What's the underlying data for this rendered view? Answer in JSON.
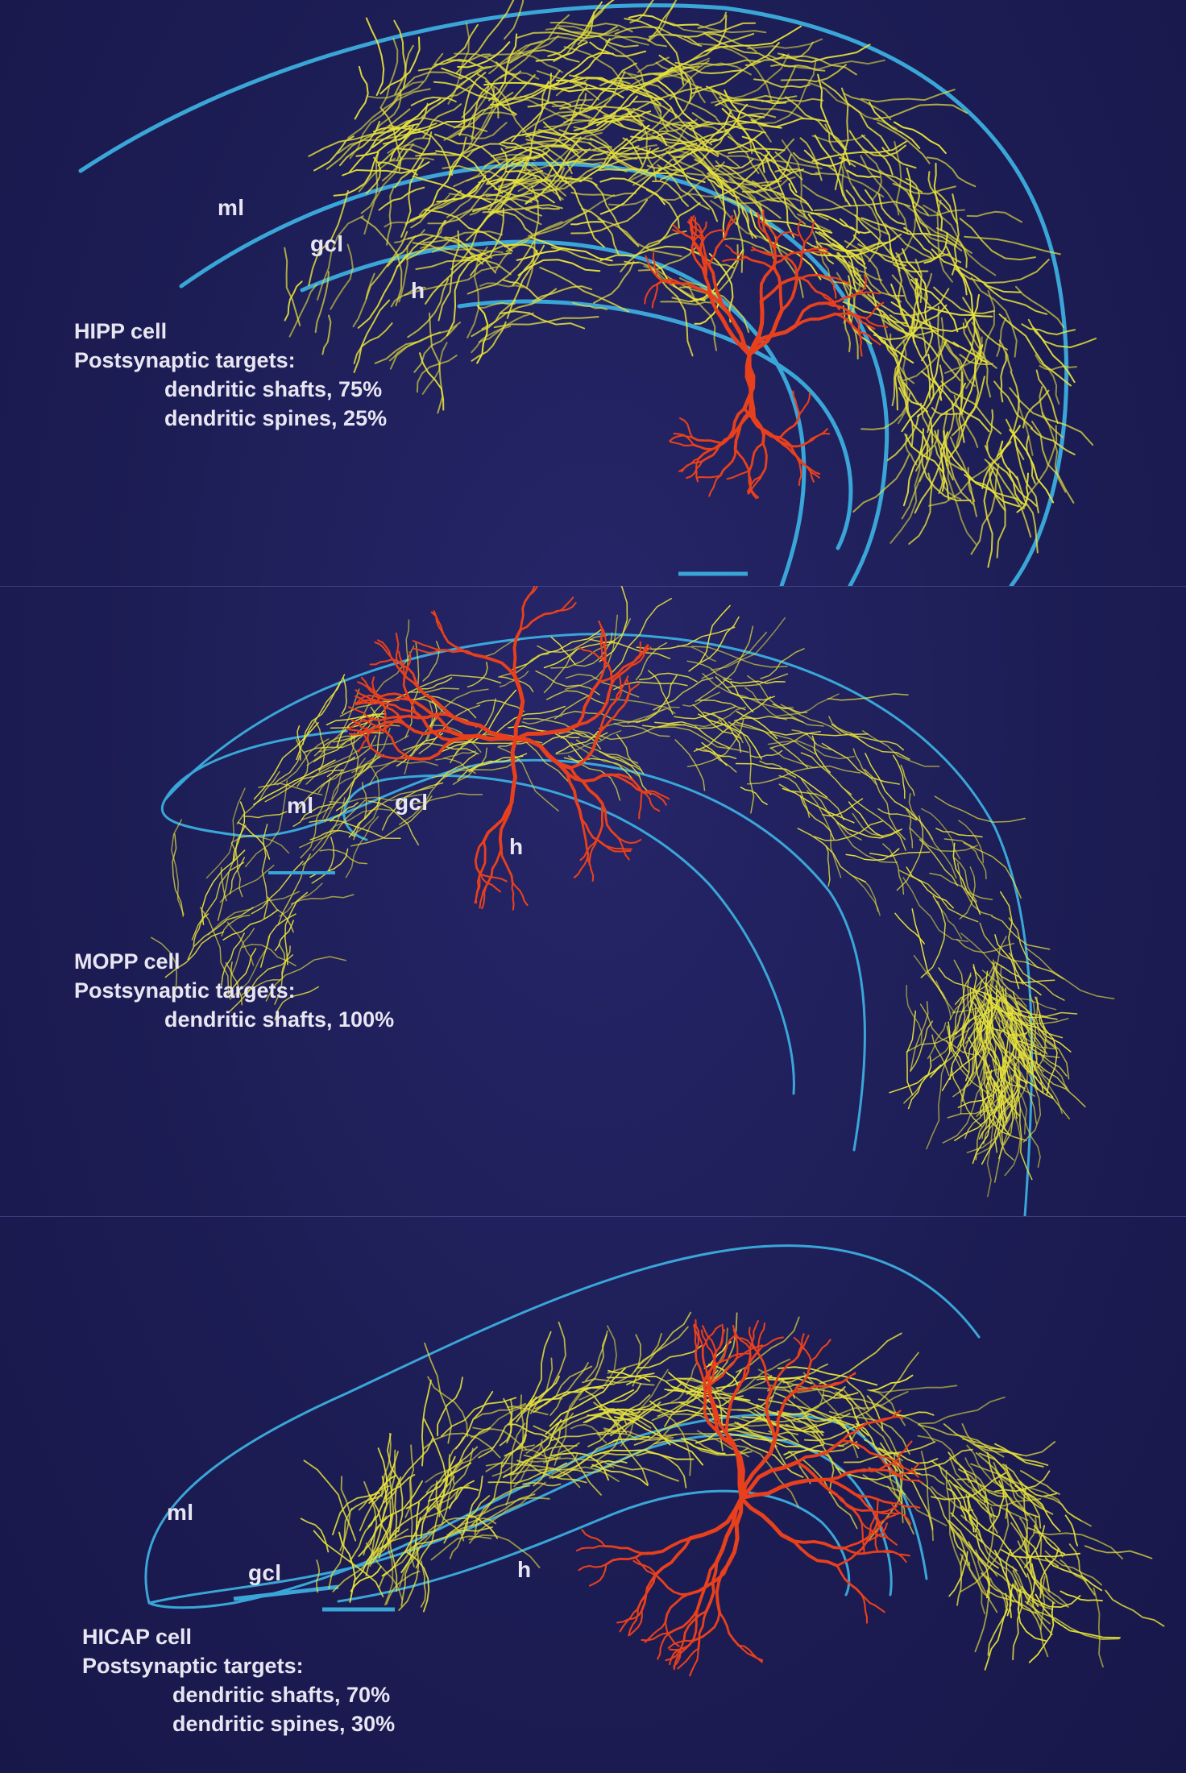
{
  "panels": [
    {
      "cell": "HIPP cell",
      "targets_heading": "Postsynaptic targets:",
      "targets": [
        "dendritic shafts,  75%",
        "dendritic spines, 25%"
      ],
      "layers": {
        "ml": "ml",
        "gcl": "gcl",
        "h": "h"
      }
    },
    {
      "cell": "MOPP cell",
      "targets_heading": "Postsynaptic targets:",
      "targets": [
        "dendritic shafts, 100%"
      ],
      "layers": {
        "ml": "ml",
        "gcl": "gcl",
        "h": "h"
      }
    },
    {
      "cell": "HICAP cell",
      "targets_heading": "Postsynaptic targets:",
      "targets": [
        "dendritic shafts,  70%",
        "dendritic spines, 30%"
      ],
      "layers": {
        "ml": "ml",
        "gcl": "gcl",
        "h": "h"
      }
    }
  ],
  "colors": {
    "background": "#1f1f5a",
    "layer_boundary": "#3aa6d8",
    "axon": "#e6e23a",
    "dendrite": "#e8401c",
    "text": "#e8e6f2"
  }
}
